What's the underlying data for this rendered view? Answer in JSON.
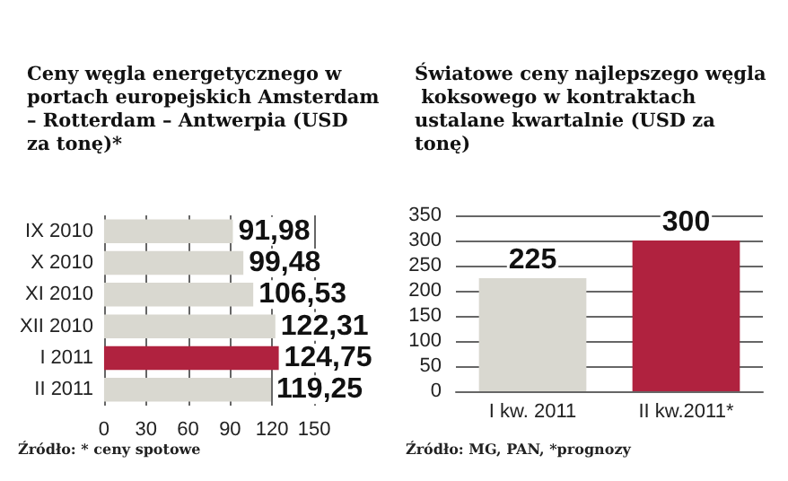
{
  "chart_data": [
    {
      "type": "bar",
      "orientation": "horizontal",
      "title": "Ceny węgla energetycznego w portach europejskich Amsterdam – Rotterdam – Antwerpia (USD za tonę)*",
      "categories": [
        "IX 2010",
        "X 2010",
        "XI 2010",
        "XII 2010",
        "I 2011",
        "II 2011"
      ],
      "values": [
        91.98,
        99.48,
        106.53,
        122.31,
        124.75,
        119.25
      ],
      "colors": [
        "#d9d8d0",
        "#d9d8d0",
        "#d9d8d0",
        "#d9d8d0",
        "#b0223f",
        "#d9d8d0"
      ],
      "value_labels": [
        "91,98",
        "99,48",
        "106,53",
        "122,31",
        "124,75",
        "119,25"
      ],
      "xlim": [
        0,
        150
      ],
      "xticks": [
        0,
        30,
        60,
        90,
        120,
        150
      ],
      "grid": "x",
      "annotations": [
        "Źródło: * ceny spotowe"
      ]
    },
    {
      "type": "bar",
      "title": "Światowe ceny najlepszego węgla koksowego w kontraktach ustalane kwartalnie (USD za tonę)",
      "categories": [
        "I kw. 2011",
        "II kw.2011*"
      ],
      "values": [
        225,
        300
      ],
      "colors": [
        "#d9d8d0",
        "#b0223f"
      ],
      "data_labels": true,
      "ylim": [
        0,
        350
      ],
      "yticks": [
        0,
        50,
        100,
        150,
        200,
        250,
        300,
        350
      ],
      "grid": "y",
      "annotations": [
        "Źródło: MG, PAN, *prognozy"
      ]
    }
  ]
}
